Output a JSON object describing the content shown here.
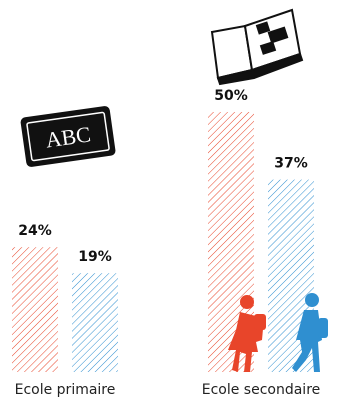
{
  "chart_data": {
    "type": "bar",
    "categories": [
      "Ecole primaire",
      "Ecole secondaire"
    ],
    "series": [
      {
        "color": "#e8452a",
        "values": [
          24,
          50
        ],
        "value_labels": [
          "24%",
          "50%"
        ]
      },
      {
        "color": "#2f8fd0",
        "values": [
          19,
          37
        ],
        "value_labels": [
          "19%",
          "37%"
        ]
      }
    ]
  }
}
